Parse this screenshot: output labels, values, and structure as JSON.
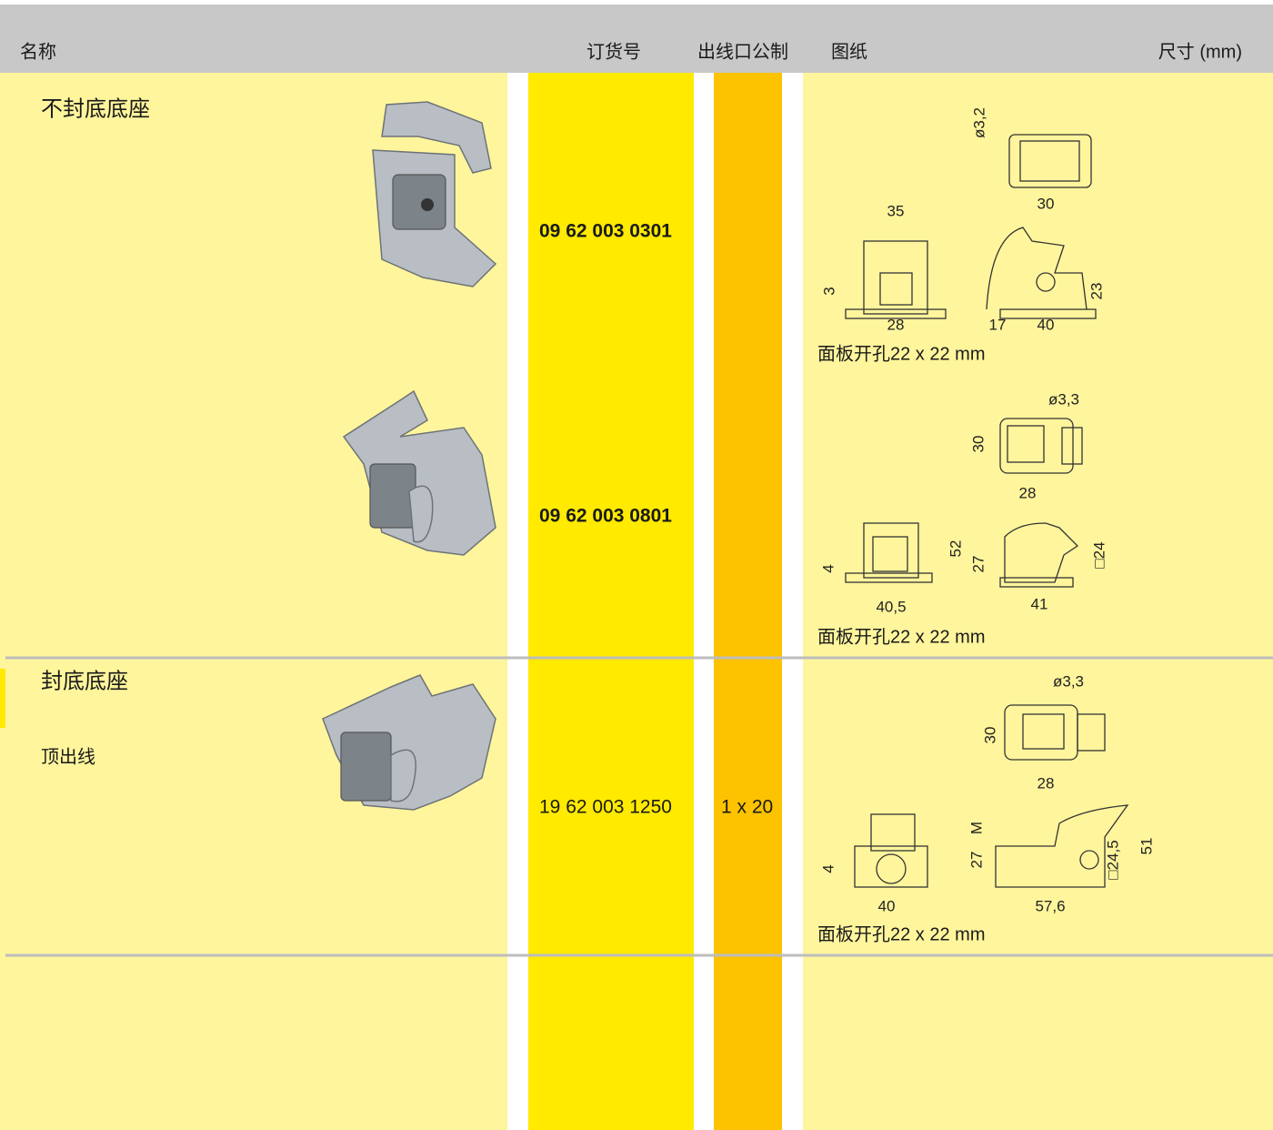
{
  "header": {
    "columns": [
      "名称",
      "订货号",
      "出线口公制",
      "图纸",
      "尺寸 (mm)"
    ]
  },
  "rows": [
    {
      "name": "不封底底座",
      "items": [
        {
          "order_number": "09 62 003 0301",
          "panel_cutout": "面板开孔22 x 22 mm",
          "dimensions": [
            "ø3,2",
            "30",
            "35",
            "3",
            "28",
            "17",
            "40",
            "23"
          ]
        },
        {
          "order_number": "09 62 003 0801",
          "panel_cutout": "面板开孔22 x 22 mm",
          "dimensions": [
            "ø3,3",
            "30",
            "28",
            "4",
            "40,5",
            "52",
            "27",
            "41",
            "□24"
          ]
        }
      ]
    },
    {
      "name": "封底底座",
      "subtitle": "顶出线",
      "items": [
        {
          "order_number": "19 62 003 1250",
          "cable_entry": "1 x 20",
          "panel_cutout": "面板开孔22 x 22 mm",
          "dimensions": [
            "ø3,3",
            "30",
            "28",
            "M",
            "4",
            "27",
            "□24,5",
            "51",
            "40",
            "57,6"
          ]
        }
      ]
    }
  ]
}
